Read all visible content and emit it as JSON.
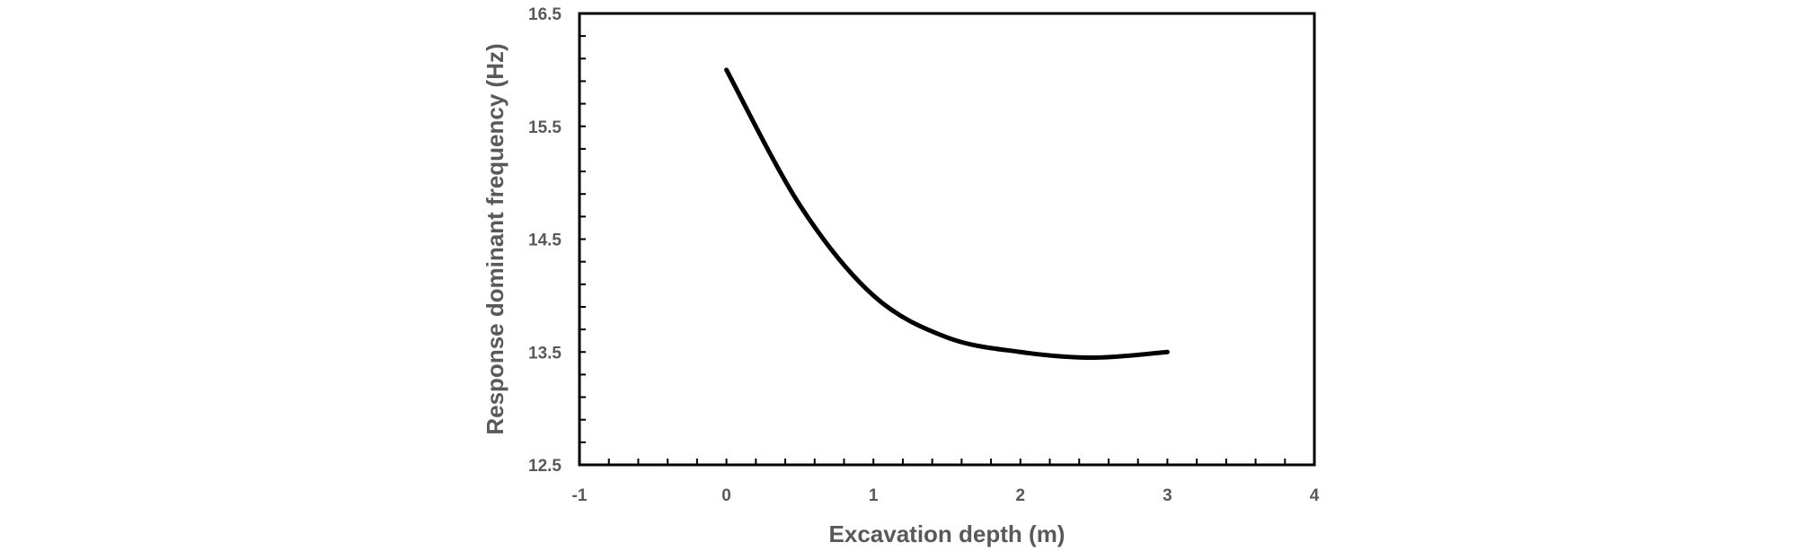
{
  "chart_data": {
    "type": "line",
    "title": "",
    "xlabel": "Excavation depth (m)",
    "ylabel": "Response dominant frequency (Hz)",
    "xlim": [
      -1,
      4
    ],
    "ylim": [
      12.5,
      16.5
    ],
    "x_ticks": [
      -1,
      0,
      1,
      2,
      3,
      4
    ],
    "y_ticks": [
      12.5,
      13.5,
      14.5,
      15.5,
      16.5
    ],
    "x_tick_labels": [
      "-1",
      "0",
      "1",
      "2",
      "3",
      "4"
    ],
    "y_tick_labels": [
      "12.5",
      "13.5",
      "14.5",
      "15.5",
      "16.5"
    ],
    "x_minor_step": 0.2,
    "y_minor_step": 0.2,
    "grid": false,
    "legend": "none",
    "series": [
      {
        "color": "#000000",
        "smooth": true,
        "x": [
          0,
          0.5,
          1,
          1.5,
          2,
          2.5,
          3
        ],
        "y": [
          16.0,
          14.8,
          14.0,
          13.63,
          13.5,
          13.45,
          13.5
        ]
      }
    ],
    "colors": {
      "axis": "#000000",
      "text": "#595959"
    }
  }
}
